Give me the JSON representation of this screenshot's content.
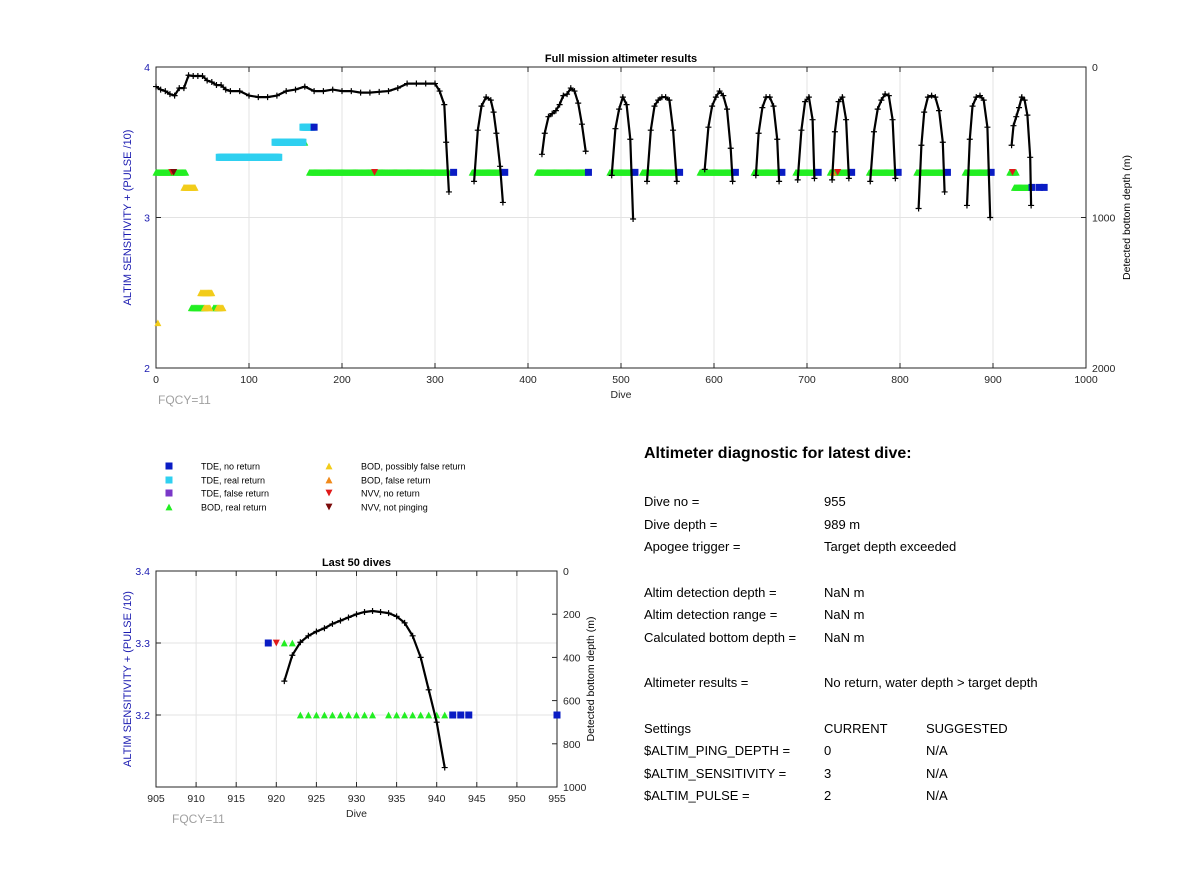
{
  "colors": {
    "tde_no_return": "#0a1cc4",
    "tde_real_return": "#2fd0f0",
    "tde_false_return": "#7a38c8",
    "bod_real_return": "#22ee22",
    "bod_possibly_false": "#f2cc1a",
    "bod_false_return": "#f08a1a",
    "nvv_no_return": "#e01a1a",
    "nvv_not_pinging": "#7a0a0a",
    "depth_line": "#000000",
    "left_axis": "#1a1ab0",
    "grid": "#e3e3e3",
    "fqcy": "#a0a0a0"
  },
  "legend": [
    {
      "key": "tde_no_return",
      "label": "TDE, no return",
      "marker": "square"
    },
    {
      "key": "tde_real_return",
      "label": "TDE, real return",
      "marker": "square"
    },
    {
      "key": "tde_false_return",
      "label": "TDE, false return",
      "marker": "square"
    },
    {
      "key": "bod_real_return",
      "label": "BOD, real return",
      "marker": "triangle-up"
    },
    {
      "key": "bod_possibly_false",
      "label": "BOD, possibly false return",
      "marker": "triangle-up"
    },
    {
      "key": "bod_false_return",
      "label": "BOD, false return",
      "marker": "triangle-up"
    },
    {
      "key": "nvv_no_return",
      "label": "NVV, no return",
      "marker": "triangle-down"
    },
    {
      "key": "nvv_not_pinging",
      "label": "NVV, not pinging",
      "marker": "triangle-down"
    }
  ],
  "chart_data": [
    {
      "type": "scatter",
      "title": "Full mission altimeter results",
      "xlabel": "Dive",
      "ylabel": "ALTIM SENSITIVITY + (PULSE /10)",
      "y2label": "Detected bottom depth (m)",
      "xlim": [
        0,
        1000
      ],
      "ylim": [
        2,
        4
      ],
      "y2lim": [
        2000,
        0
      ],
      "y2_reversed": true,
      "xticks": [
        0,
        100,
        200,
        300,
        400,
        500,
        600,
        700,
        800,
        900,
        1000
      ],
      "yticks": [
        2,
        3,
        4
      ],
      "y2ticks": [
        0,
        1000,
        2000
      ],
      "grid": true,
      "annotation": "FQCY=11",
      "runs": [
        {
          "key": "bod_real_return",
          "y": 3.3,
          "x_from": 0,
          "x_to": 32
        },
        {
          "key": "bod_real_return",
          "y": 3.3,
          "x_from": 165,
          "x_to": 315
        },
        {
          "key": "bod_real_return",
          "y": 3.3,
          "x_from": 340,
          "x_to": 370
        },
        {
          "key": "bod_real_return",
          "y": 3.3,
          "x_from": 410,
          "x_to": 462
        },
        {
          "key": "bod_real_return",
          "y": 3.3,
          "x_from": 488,
          "x_to": 513
        },
        {
          "key": "bod_real_return",
          "y": 3.3,
          "x_from": 523,
          "x_to": 560
        },
        {
          "key": "bod_real_return",
          "y": 3.3,
          "x_from": 585,
          "x_to": 620
        },
        {
          "key": "bod_real_return",
          "y": 3.3,
          "x_from": 643,
          "x_to": 670
        },
        {
          "key": "bod_real_return",
          "y": 3.3,
          "x_from": 688,
          "x_to": 708
        },
        {
          "key": "bod_real_return",
          "y": 3.3,
          "x_from": 725,
          "x_to": 745
        },
        {
          "key": "bod_real_return",
          "y": 3.3,
          "x_from": 767,
          "x_to": 795
        },
        {
          "key": "bod_real_return",
          "y": 3.3,
          "x_from": 818,
          "x_to": 848
        },
        {
          "key": "bod_real_return",
          "y": 3.3,
          "x_from": 870,
          "x_to": 895
        },
        {
          "key": "bod_real_return",
          "y": 3.3,
          "x_from": 918,
          "x_to": 925
        },
        {
          "key": "bod_real_return",
          "y": 3.2,
          "x_from": 923,
          "x_to": 940
        },
        {
          "key": "bod_real_return",
          "y": 2.4,
          "x_from": 38,
          "x_to": 52
        },
        {
          "key": "bod_real_return",
          "y": 2.4,
          "x_from": 62,
          "x_to": 68
        },
        {
          "key": "bod_real_return",
          "y": 3.5,
          "x_from": 132,
          "x_to": 160
        },
        {
          "key": "tde_real_return",
          "y": 3.4,
          "x_from": 68,
          "x_to": 132
        },
        {
          "key": "tde_real_return",
          "y": 3.5,
          "x_from": 128,
          "x_to": 158
        },
        {
          "key": "tde_real_return",
          "y": 3.6,
          "x_from": 158,
          "x_to": 168
        },
        {
          "key": "bod_possibly_false",
          "y": 3.2,
          "x_from": 30,
          "x_to": 42
        },
        {
          "key": "bod_possibly_false",
          "y": 2.5,
          "x_from": 48,
          "x_to": 60
        },
        {
          "key": "bod_possibly_false",
          "y": 2.4,
          "x_from": 52,
          "x_to": 58
        },
        {
          "key": "bod_possibly_false",
          "y": 2.4,
          "x_from": 66,
          "x_to": 72
        }
      ],
      "points": [
        {
          "key": "bod_possibly_false",
          "x": 2,
          "y": 2.3
        },
        {
          "key": "tde_no_return",
          "x": 320,
          "y": 3.3
        },
        {
          "key": "tde_no_return",
          "x": 375,
          "y": 3.3
        },
        {
          "key": "tde_no_return",
          "x": 465,
          "y": 3.3
        },
        {
          "key": "tde_no_return",
          "x": 515,
          "y": 3.3
        },
        {
          "key": "tde_no_return",
          "x": 563,
          "y": 3.3
        },
        {
          "key": "tde_no_return",
          "x": 623,
          "y": 3.3
        },
        {
          "key": "tde_no_return",
          "x": 673,
          "y": 3.3
        },
        {
          "key": "tde_no_return",
          "x": 712,
          "y": 3.3
        },
        {
          "key": "tde_no_return",
          "x": 748,
          "y": 3.3
        },
        {
          "key": "tde_no_return",
          "x": 798,
          "y": 3.3
        },
        {
          "key": "tde_no_return",
          "x": 851,
          "y": 3.3
        },
        {
          "key": "tde_no_return",
          "x": 898,
          "y": 3.3
        },
        {
          "key": "tde_no_return",
          "x": 942,
          "y": 3.2
        },
        {
          "key": "tde_no_return",
          "x": 950,
          "y": 3.2
        },
        {
          "key": "tde_no_return",
          "x": 955,
          "y": 3.2
        },
        {
          "key": "tde_no_return",
          "x": 170,
          "y": 3.6
        },
        {
          "key": "nvv_no_return",
          "x": 17,
          "y": 3.3
        },
        {
          "key": "nvv_no_return",
          "x": 235,
          "y": 3.3
        },
        {
          "key": "nvv_no_return",
          "x": 733,
          "y": 3.3
        },
        {
          "key": "nvv_no_return",
          "x": 921,
          "y": 3.3
        },
        {
          "key": "nvv_not_pinging",
          "x": 19,
          "y": 3.3
        },
        {
          "key": "bod_false_return",
          "x": 728,
          "y": 3.3
        }
      ],
      "depth_segments": [
        {
          "x": [
            0,
            5,
            10,
            15,
            20,
            25,
            30,
            35,
            40,
            45,
            50,
            55,
            60,
            65,
            70,
            75,
            80,
            90,
            100,
            110,
            120,
            130,
            140,
            150,
            160,
            170,
            180,
            190,
            200,
            210,
            220,
            230,
            240,
            250,
            260,
            270,
            280,
            290,
            300,
            305,
            310,
            312,
            315
          ],
          "y": [
            130,
            150,
            160,
            180,
            190,
            140,
            140,
            55,
            60,
            60,
            60,
            90,
            100,
            120,
            120,
            150,
            160,
            160,
            190,
            200,
            200,
            190,
            160,
            150,
            130,
            160,
            160,
            150,
            160,
            160,
            170,
            170,
            165,
            160,
            140,
            110,
            110,
            110,
            110,
            160,
            250,
            500,
            830
          ]
        },
        {
          "x": [
            342,
            346,
            350,
            355,
            360,
            363,
            366,
            370,
            373
          ],
          "y": [
            760,
            420,
            260,
            200,
            220,
            300,
            440,
            660,
            900
          ]
        },
        {
          "x": [
            415,
            418,
            422,
            426,
            430,
            434,
            438,
            442,
            446,
            450,
            454,
            458,
            462
          ],
          "y": [
            580,
            440,
            330,
            310,
            290,
            250,
            190,
            180,
            140,
            160,
            240,
            380,
            560
          ]
        },
        {
          "x": [
            490,
            494,
            498,
            502,
            506,
            510,
            513
          ],
          "y": [
            720,
            410,
            280,
            200,
            250,
            480,
            1010
          ]
        },
        {
          "x": [
            528,
            532,
            536,
            540,
            544,
            548,
            552,
            556,
            560
          ],
          "y": [
            760,
            420,
            260,
            220,
            200,
            200,
            220,
            420,
            760
          ]
        },
        {
          "x": [
            590,
            594,
            598,
            602,
            606,
            610,
            614,
            618,
            620
          ],
          "y": [
            680,
            400,
            260,
            200,
            160,
            190,
            280,
            540,
            760
          ]
        },
        {
          "x": [
            645,
            648,
            652,
            656,
            660,
            664,
            668,
            670
          ],
          "y": [
            720,
            440,
            270,
            200,
            200,
            260,
            480,
            760
          ]
        },
        {
          "x": [
            690,
            694,
            698,
            702,
            706,
            708
          ],
          "y": [
            750,
            420,
            230,
            200,
            350,
            740
          ]
        },
        {
          "x": [
            727,
            730,
            734,
            738,
            742,
            745
          ],
          "y": [
            750,
            430,
            230,
            200,
            350,
            740
          ]
        },
        {
          "x": [
            768,
            772,
            776,
            780,
            784,
            788,
            792,
            795
          ],
          "y": [
            760,
            430,
            280,
            220,
            180,
            190,
            350,
            740
          ]
        },
        {
          "x": [
            820,
            823,
            826,
            830,
            834,
            838,
            842,
            846,
            848
          ],
          "y": [
            940,
            520,
            300,
            200,
            190,
            200,
            290,
            500,
            830
          ]
        },
        {
          "x": [
            872,
            875,
            878,
            882,
            886,
            890,
            894,
            897
          ],
          "y": [
            920,
            480,
            260,
            200,
            190,
            220,
            400,
            1000
          ]
        },
        {
          "x": [
            920,
            922,
            925,
            928,
            931,
            934,
            937,
            940,
            941
          ],
          "y": [
            520,
            390,
            330,
            270,
            200,
            220,
            320,
            600,
            920
          ]
        }
      ]
    },
    {
      "type": "scatter",
      "title": "Last 50 dives",
      "xlabel": "Dive",
      "ylabel": "ALTIM SENSITIVITY + (PULSE /10)",
      "y2label": "Detected bottom depth (m)",
      "xlim": [
        905,
        955
      ],
      "ylim": [
        3.1,
        3.4
      ],
      "y2lim": [
        1000,
        0
      ],
      "y2_reversed": true,
      "xticks": [
        905,
        910,
        915,
        920,
        925,
        930,
        935,
        940,
        945,
        950,
        955
      ],
      "yticks": [
        3.2,
        3.3,
        3.4
      ],
      "y2ticks": [
        0,
        200,
        400,
        600,
        800,
        1000
      ],
      "grid": true,
      "annotation": "FQCY=11",
      "points": [
        {
          "key": "tde_no_return",
          "x": 919,
          "y": 3.3
        },
        {
          "key": "nvv_no_return",
          "x": 920,
          "y": 3.3
        },
        {
          "key": "bod_real_return",
          "x": 921,
          "y": 3.3
        },
        {
          "key": "bod_real_return",
          "x": 922,
          "y": 3.3
        },
        {
          "key": "bod_real_return",
          "x": 923,
          "y": 3.2
        },
        {
          "key": "bod_real_return",
          "x": 924,
          "y": 3.2
        },
        {
          "key": "bod_real_return",
          "x": 925,
          "y": 3.2
        },
        {
          "key": "bod_real_return",
          "x": 926,
          "y": 3.2
        },
        {
          "key": "bod_real_return",
          "x": 927,
          "y": 3.2
        },
        {
          "key": "bod_real_return",
          "x": 928,
          "y": 3.2
        },
        {
          "key": "bod_real_return",
          "x": 929,
          "y": 3.2
        },
        {
          "key": "bod_real_return",
          "x": 930,
          "y": 3.2
        },
        {
          "key": "bod_real_return",
          "x": 931,
          "y": 3.2
        },
        {
          "key": "bod_real_return",
          "x": 932,
          "y": 3.2
        },
        {
          "key": "bod_real_return",
          "x": 934,
          "y": 3.2
        },
        {
          "key": "bod_real_return",
          "x": 935,
          "y": 3.2
        },
        {
          "key": "bod_real_return",
          "x": 936,
          "y": 3.2
        },
        {
          "key": "bod_real_return",
          "x": 937,
          "y": 3.2
        },
        {
          "key": "bod_real_return",
          "x": 938,
          "y": 3.2
        },
        {
          "key": "bod_real_return",
          "x": 939,
          "y": 3.2
        },
        {
          "key": "bod_real_return",
          "x": 940,
          "y": 3.2
        },
        {
          "key": "bod_real_return",
          "x": 941,
          "y": 3.2
        },
        {
          "key": "tde_no_return",
          "x": 942,
          "y": 3.2
        },
        {
          "key": "tde_no_return",
          "x": 943,
          "y": 3.2
        },
        {
          "key": "tde_no_return",
          "x": 944,
          "y": 3.2
        },
        {
          "key": "tde_no_return",
          "x": 955,
          "y": 3.2
        }
      ],
      "depth_segments": [
        {
          "x": [
            921,
            922,
            923,
            924,
            925,
            926,
            927,
            928,
            929,
            930,
            931,
            932,
            933,
            934,
            935,
            936,
            937,
            938,
            939,
            940,
            941
          ],
          "y": [
            510,
            390,
            330,
            300,
            280,
            265,
            245,
            230,
            215,
            200,
            190,
            185,
            190,
            195,
            210,
            240,
            300,
            400,
            550,
            700,
            910
          ]
        }
      ]
    }
  ],
  "diagnostic": {
    "title": "Altimeter diagnostic for latest dive:",
    "dive_no": {
      "label": "Dive no =",
      "value": "955"
    },
    "dive_depth": {
      "label": "Dive depth =",
      "value": "989 m"
    },
    "apogee_trigger": {
      "label": "Apogee trigger =",
      "value": "Target depth exceeded"
    },
    "detection_depth": {
      "label": "Altim detection depth =",
      "value": "NaN m"
    },
    "detection_range": {
      "label": "Altim detection range =",
      "value": "NaN m"
    },
    "bottom_depth": {
      "label": "Calculated bottom depth =",
      "value": "NaN m"
    },
    "results": {
      "label": "Altimeter results =",
      "value": "No return, water depth > target depth"
    },
    "settings_header": {
      "label": "Settings",
      "current": "CURRENT",
      "suggested": "SUGGESTED"
    },
    "settings": [
      {
        "name": "$ALTIM_PING_DEPTH =",
        "current": "0",
        "suggested": "N/A"
      },
      {
        "name": "$ALTIM_SENSITIVITY =",
        "current": "3",
        "suggested": "N/A"
      },
      {
        "name": "$ALTIM_PULSE =",
        "current": "2",
        "suggested": "N/A"
      }
    ]
  }
}
